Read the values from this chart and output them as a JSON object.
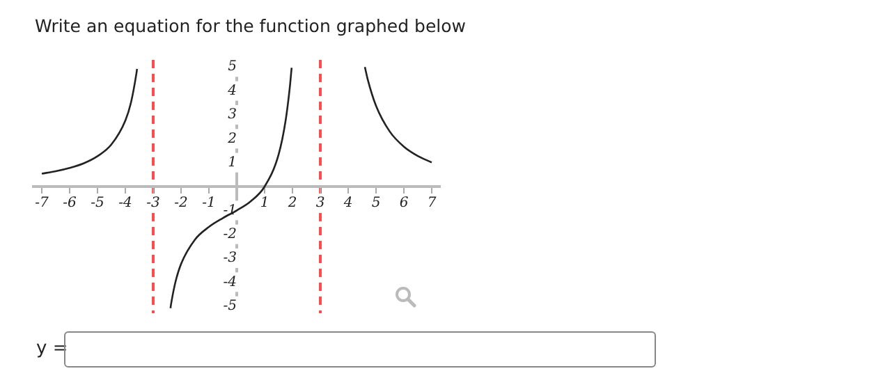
{
  "chart_data": {
    "type": "line",
    "title": "Write an equation for the function graphed below",
    "annotations": [
      "y ="
    ],
    "series": [
      {
        "color": "#222222",
        "x": [
          -7,
          -6.5,
          -6,
          -5.5,
          -5,
          -4.5,
          -4,
          -3.8,
          -3.6,
          -3.58
        ],
        "values": [
          0.54,
          0.64,
          0.78,
          0.97,
          1.27,
          1.76,
          2.76,
          3.5,
          4.75,
          4.92
        ]
      },
      {
        "color": "#222222",
        "x": [
          -2.38,
          -2.35,
          -2.2,
          -2,
          -1.5,
          -1,
          -0.5,
          0,
          0.5,
          1,
          1.5,
          1.75,
          1.9,
          1.97
        ],
        "values": [
          -5.09,
          -4.86,
          -3.99,
          -3.24,
          -2.22,
          -1.69,
          -1.32,
          -1,
          -0.62,
          0,
          1.33,
          2.73,
          4.1,
          4.97
        ]
      },
      {
        "color": "#222222",
        "x": [
          4.6,
          4.7,
          5,
          5.5,
          6,
          6.5,
          7
        ],
        "values": [
          5,
          4.49,
          3.38,
          2.29,
          1.67,
          1.28,
          1.01
        ]
      }
    ],
    "xlim": [
      -7.3,
      7.3
    ],
    "ylim": [
      -5.3,
      5.3
    ],
    "xticks": [
      -7,
      -6,
      -5,
      -4,
      -3,
      -2,
      -1,
      1,
      2,
      3,
      4,
      5,
      6,
      7
    ],
    "yticks": [
      -5,
      -4,
      -3,
      -2,
      -1,
      1,
      2,
      3,
      4,
      5
    ],
    "ref_lines": [
      {
        "axis": "x",
        "value": -3,
        "color": "#ff4d4d",
        "line_style": "dashed"
      },
      {
        "axis": "x",
        "value": 3,
        "color": "#ff4d4d",
        "line_style": "dashed"
      }
    ],
    "grid": false,
    "legend": false,
    "marker": "none",
    "line_style": "solid"
  }
}
